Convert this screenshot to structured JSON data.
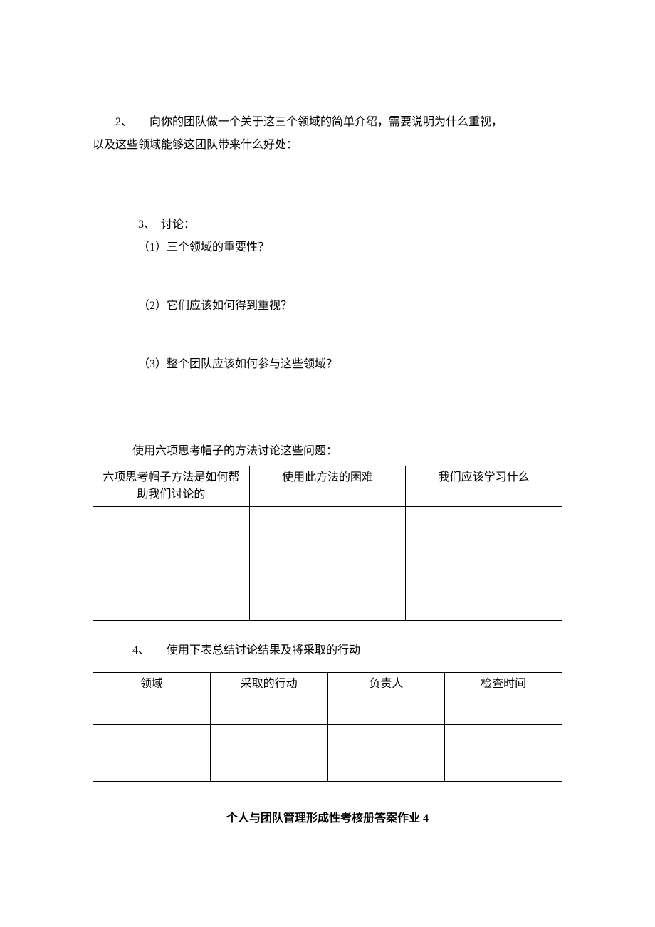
{
  "q2": {
    "line1": "2、　　向你的团队做一个关于这三个领域的简单介绍，需要说明为什么重视，",
    "line2": "以及这些领域能够这团队带来什么好处："
  },
  "q3": {
    "heading": "3、　讨论：",
    "sub1": "（1）三个领域的重要性？",
    "sub2": "（2）它们应该如何得到重视？",
    "sub3": "（3）整个团队应该如何参与这些领域？"
  },
  "hats": {
    "intro": "使用六项思考帽子的方法讨论这些问题：",
    "col1": "六项思考帽子方法是如何帮助我们讨论的",
    "col2": "使用此方法的困难",
    "col3": "我们应该学习什么"
  },
  "q4": {
    "heading": "4、　　使用下表总结讨论结果及将采取的行动"
  },
  "actions_table": {
    "col1": "领域",
    "col2": "采取的行动",
    "col3": "负责人",
    "col4": "检查时间"
  },
  "doc_title": "个人与团队管理形成性考核册答案作业 4"
}
